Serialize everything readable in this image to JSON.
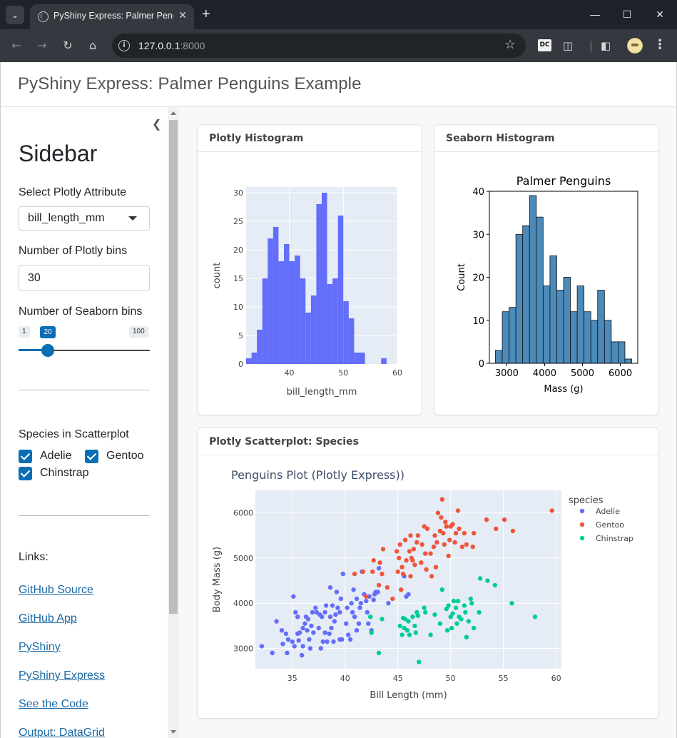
{
  "browser": {
    "tab_title": "PyShiny Express: Palmer Penguins Example",
    "url_host": "127.0.0.1",
    "url_port": ":8000",
    "ext_dc_label": "DC"
  },
  "page": {
    "title": "PyShiny Express: Palmer Penguins Example"
  },
  "sidebar": {
    "title": "Sidebar",
    "attr_label": "Select Plotly Attribute",
    "attr_value": "bill_length_mm",
    "plotly_bins_label": "Number of Plotly bins",
    "plotly_bins_value": "30",
    "seaborn_bins_label": "Number of Seaborn bins",
    "slider": {
      "min": "1",
      "max": "100",
      "value": "20",
      "fraction": 0.192
    },
    "species_label": "Species in Scatterplot",
    "species": [
      {
        "label": "Adelie",
        "checked": true
      },
      {
        "label": "Gentoo",
        "checked": true
      },
      {
        "label": "Chinstrap",
        "checked": true
      }
    ],
    "links_label": "Links:",
    "links": [
      "GitHub Source",
      "GitHub App",
      "PyShiny",
      "PyShiny Express",
      "See the Code",
      "Output: DataGrid"
    ]
  },
  "cards": {
    "plotly_hist": "Plotly Histogram",
    "seaborn_hist": "Seaborn Histogram",
    "scatter": "Plotly Scatterplot: Species"
  },
  "chart_data": [
    {
      "type": "bar",
      "xlabel": "bill_length_mm",
      "ylabel": "count",
      "xlim": [
        32,
        60
      ],
      "ylim": [
        0,
        31
      ],
      "x_ticks": [
        40,
        50,
        60
      ],
      "y_ticks": [
        0,
        5,
        10,
        15,
        20,
        25,
        30
      ],
      "bin_edges": [
        32,
        33,
        34,
        35,
        36,
        37,
        38,
        39,
        40,
        41,
        42,
        43,
        44,
        45,
        46,
        47,
        48,
        49,
        50,
        51,
        52,
        53,
        54,
        55,
        56,
        57,
        58,
        59,
        60
      ],
      "values": [
        1,
        2,
        6,
        15,
        22,
        24,
        18,
        21,
        18,
        19,
        15,
        9,
        12,
        28,
        30,
        14,
        15,
        26,
        11,
        8,
        2,
        2,
        0,
        0,
        0,
        1,
        0,
        0
      ],
      "color": "#636efa",
      "background": "#e5ecf6"
    },
    {
      "type": "bar",
      "title": "Palmer Penguins",
      "xlabel": "Mass (g)",
      "ylabel": "Count",
      "xlim": [
        2540,
        6460
      ],
      "ylim": [
        0,
        40
      ],
      "x_ticks": [
        3000,
        4000,
        5000,
        6000
      ],
      "y_ticks": [
        0,
        10,
        20,
        30,
        40
      ],
      "bin_edges": [
        2700,
        2880,
        3060,
        3240,
        3420,
        3600,
        3780,
        3960,
        4140,
        4320,
        4500,
        4680,
        4860,
        5040,
        5220,
        5400,
        5580,
        5760,
        5940,
        6120,
        6300
      ],
      "values": [
        3,
        12,
        13,
        30,
        32,
        39,
        34,
        18,
        25,
        17,
        20,
        12,
        18,
        12,
        10,
        17,
        10,
        5,
        5,
        1
      ],
      "color": "#4c8ab9",
      "edge_color": "#111111"
    },
    {
      "type": "scatter",
      "title": "Penguins Plot (Plotly Express))",
      "xlabel": "Bill Length (mm)",
      "ylabel": "Body Mass (g)",
      "xlim": [
        31.5,
        60.5
      ],
      "ylim": [
        2550,
        6500
      ],
      "x_ticks": [
        35,
        40,
        45,
        50,
        55,
        60
      ],
      "y_ticks": [
        3000,
        4000,
        5000,
        6000
      ],
      "legend_title": "species",
      "legend_position": "right",
      "series": [
        {
          "name": "Adelie",
          "color": "#636efa",
          "points": [
            [
              32.1,
              3050
            ],
            [
              33.1,
              2900
            ],
            [
              33.5,
              3600
            ],
            [
              34.0,
              3400
            ],
            [
              34.1,
              3100
            ],
            [
              34.4,
              3325
            ],
            [
              34.5,
              2900
            ],
            [
              34.6,
              3200
            ],
            [
              35.0,
              3150
            ],
            [
              35.1,
              4150
            ],
            [
              35.2,
              3050
            ],
            [
              35.3,
              3800
            ],
            [
              35.5,
              3700
            ],
            [
              35.5,
              3325
            ],
            [
              35.6,
              3175
            ],
            [
              35.7,
              3350
            ],
            [
              35.9,
              2850
            ],
            [
              36.0,
              3450
            ],
            [
              36.0,
              3050
            ],
            [
              36.2,
              3550
            ],
            [
              36.3,
              3700
            ],
            [
              36.4,
              3400
            ],
            [
              36.5,
              3650
            ],
            [
              36.6,
              3200
            ],
            [
              36.7,
              3000
            ],
            [
              36.8,
              3500
            ],
            [
              36.9,
              3800
            ],
            [
              37.0,
              3350
            ],
            [
              37.2,
              3900
            ],
            [
              37.3,
              3800
            ],
            [
              37.5,
              3450
            ],
            [
              37.6,
              3750
            ],
            [
              37.7,
              3000
            ],
            [
              37.8,
              3700
            ],
            [
              37.9,
              3150
            ],
            [
              38.1,
              3350
            ],
            [
              38.1,
              3800
            ],
            [
              38.2,
              3950
            ],
            [
              38.3,
              3150
            ],
            [
              38.5,
              3325
            ],
            [
              38.6,
              3700
            ],
            [
              38.6,
              4350
            ],
            [
              38.7,
              3450
            ],
            [
              38.8,
              3950
            ],
            [
              38.9,
              3150
            ],
            [
              39.0,
              3600
            ],
            [
              39.1,
              3750
            ],
            [
              39.2,
              4250
            ],
            [
              39.3,
              3900
            ],
            [
              39.5,
              3800
            ],
            [
              39.5,
              3200
            ],
            [
              39.6,
              4100
            ],
            [
              39.7,
              3200
            ],
            [
              39.8,
              4650
            ],
            [
              40.1,
              3550
            ],
            [
              40.2,
              3900
            ],
            [
              40.3,
              3300
            ],
            [
              40.5,
              3200
            ],
            [
              40.6,
              4000
            ],
            [
              40.7,
              3800
            ],
            [
              40.8,
              4300
            ],
            [
              40.9,
              3700
            ],
            [
              41.1,
              4100
            ],
            [
              41.1,
              3400
            ],
            [
              41.3,
              3550
            ],
            [
              41.4,
              3900
            ],
            [
              41.5,
              4000
            ],
            [
              41.6,
              4700
            ],
            [
              41.8,
              4200
            ],
            [
              42.0,
              4050
            ],
            [
              42.1,
              3800
            ],
            [
              42.2,
              3550
            ],
            [
              42.3,
              4150
            ],
            [
              42.5,
              3400
            ],
            [
              42.7,
              4075
            ],
            [
              42.8,
              4200
            ],
            [
              42.9,
              4250
            ],
            [
              43.1,
              4250
            ],
            [
              43.2,
              4775
            ],
            [
              44.1,
              4000
            ],
            [
              45.6,
              4600
            ],
            [
              45.8,
              4150
            ],
            [
              46.0,
              4200
            ]
          ]
        },
        {
          "name": "Gentoo",
          "color": "#ef553b",
          "points": [
            [
              40.9,
              4650
            ],
            [
              41.7,
              4700
            ],
            [
              42.0,
              4150
            ],
            [
              42.6,
              4700
            ],
            [
              42.7,
              4950
            ],
            [
              43.2,
              4400
            ],
            [
              43.3,
              4900
            ],
            [
              43.5,
              4650
            ],
            [
              43.6,
              5200
            ],
            [
              44.0,
              4350
            ],
            [
              44.5,
              4100
            ],
            [
              44.9,
              5150
            ],
            [
              45.0,
              4700
            ],
            [
              45.1,
              5000
            ],
            [
              45.2,
              5300
            ],
            [
              45.3,
              4300
            ],
            [
              45.4,
              4800
            ],
            [
              45.5,
              4650
            ],
            [
              45.7,
              5400
            ],
            [
              45.8,
              4950
            ],
            [
              46.1,
              5150
            ],
            [
              46.2,
              4600
            ],
            [
              46.2,
              5500
            ],
            [
              46.3,
              5000
            ],
            [
              46.4,
              4950
            ],
            [
              46.5,
              5200
            ],
            [
              46.6,
              4850
            ],
            [
              46.8,
              5350
            ],
            [
              46.9,
              5500
            ],
            [
              47.2,
              4900
            ],
            [
              47.3,
              5300
            ],
            [
              47.5,
              5700
            ],
            [
              47.6,
              5100
            ],
            [
              47.7,
              4750
            ],
            [
              47.8,
              5650
            ],
            [
              48.1,
              5100
            ],
            [
              48.2,
              4600
            ],
            [
              48.4,
              5250
            ],
            [
              48.5,
              5500
            ],
            [
              48.6,
              4800
            ],
            [
              48.7,
              5350
            ],
            [
              48.8,
              6000
            ],
            [
              49.0,
              5600
            ],
            [
              49.1,
              5900
            ],
            [
              49.2,
              6300
            ],
            [
              49.3,
              5550
            ],
            [
              49.4,
              5300
            ],
            [
              49.5,
              5800
            ],
            [
              49.6,
              5700
            ],
            [
              49.8,
              5050
            ],
            [
              49.9,
              5400
            ],
            [
              50.0,
              5700
            ],
            [
              50.2,
              5750
            ],
            [
              50.4,
              5350
            ],
            [
              50.5,
              5550
            ],
            [
              50.7,
              6050
            ],
            [
              50.8,
              5650
            ],
            [
              51.1,
              5250
            ],
            [
              51.3,
              5550
            ],
            [
              51.5,
              5300
            ],
            [
              52.1,
              5250
            ],
            [
              52.2,
              5550
            ],
            [
              53.4,
              5850
            ],
            [
              54.3,
              5650
            ],
            [
              55.1,
              5850
            ],
            [
              55.9,
              5600
            ],
            [
              59.6,
              6050
            ]
          ]
        },
        {
          "name": "Chinstrap",
          "color": "#00cc96",
          "points": [
            [
              42.4,
              3700
            ],
            [
              42.5,
              3350
            ],
            [
              43.2,
              2900
            ],
            [
              43.5,
              3650
            ],
            [
              45.2,
              3500
            ],
            [
              45.4,
              3300
            ],
            [
              45.5,
              3675
            ],
            [
              45.6,
              3450
            ],
            [
              45.7,
              3650
            ],
            [
              45.9,
              3400
            ],
            [
              46.0,
              3600
            ],
            [
              46.1,
              3300
            ],
            [
              46.4,
              3700
            ],
            [
              46.6,
              3500
            ],
            [
              46.7,
              3350
            ],
            [
              46.8,
              3800
            ],
            [
              46.9,
              3725
            ],
            [
              47.0,
              2700
            ],
            [
              47.5,
              3900
            ],
            [
              47.6,
              3800
            ],
            [
              48.1,
              3300
            ],
            [
              48.5,
              3750
            ],
            [
              49.0,
              3550
            ],
            [
              49.2,
              4300
            ],
            [
              49.6,
              3875
            ],
            [
              49.7,
              3400
            ],
            [
              49.8,
              3950
            ],
            [
              50.0,
              3700
            ],
            [
              50.1,
              3450
            ],
            [
              50.2,
              3775
            ],
            [
              50.3,
              4050
            ],
            [
              50.5,
              3900
            ],
            [
              50.6,
              3550
            ],
            [
              50.7,
              4050
            ],
            [
              50.8,
              3700
            ],
            [
              51.0,
              3650
            ],
            [
              51.3,
              3950
            ],
            [
              51.4,
              3800
            ],
            [
              51.5,
              3250
            ],
            [
              51.7,
              3600
            ],
            [
              51.9,
              4100
            ],
            [
              52.0,
              4000
            ],
            [
              52.2,
              3450
            ],
            [
              52.7,
              3800
            ],
            [
              52.8,
              4550
            ],
            [
              53.5,
              4500
            ],
            [
              54.2,
              4400
            ],
            [
              55.8,
              4000
            ],
            [
              58.0,
              3700
            ]
          ]
        }
      ]
    }
  ]
}
